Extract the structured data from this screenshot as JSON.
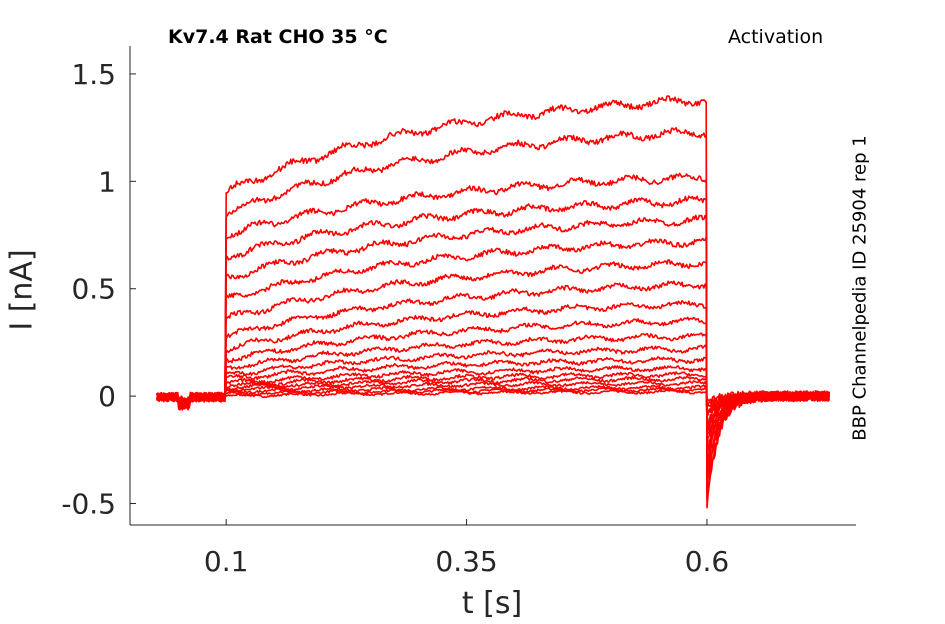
{
  "chart_data": {
    "type": "line",
    "title": "Kv7.4  Rat  CHO  35 °C",
    "protocol_label": "Activation",
    "side_label": "BBP Channelpedia ID 25904 rep 1",
    "xlabel": "t [s]",
    "ylabel": "I [nA]",
    "xlim": [
      0.0,
      0.755
    ],
    "ylim": [
      -0.6,
      1.63
    ],
    "xticks": [
      0.1,
      0.35,
      0.6
    ],
    "xtick_labels": [
      "0.1",
      "0.35",
      "0.6"
    ],
    "yticks": [
      -0.5,
      0,
      0.5,
      1,
      1.5
    ],
    "ytick_labels": [
      "-0.5",
      "0",
      "0.5",
      "1",
      "1.5"
    ],
    "grid": false,
    "line_color": "#ff0000",
    "step_start": 0.1,
    "step_end": 0.6,
    "trace_start": 0.028,
    "trace_end": 0.728,
    "series": [
      {
        "onset": 0.0,
        "end": 0.02,
        "tail": -0.02
      },
      {
        "onset": 0.01,
        "end": 0.03,
        "tail": -0.04
      },
      {
        "onset": 0.02,
        "end": 0.04,
        "tail": -0.06
      },
      {
        "onset": 0.03,
        "end": 0.06,
        "tail": -0.08
      },
      {
        "onset": 0.04,
        "end": 0.08,
        "tail": -0.1
      },
      {
        "onset": 0.05,
        "end": 0.1,
        "tail": -0.12
      },
      {
        "onset": 0.06,
        "end": 0.13,
        "tail": -0.14
      },
      {
        "onset": 0.08,
        "end": 0.17,
        "tail": -0.16
      },
      {
        "onset": 0.1,
        "end": 0.22,
        "tail": -0.18
      },
      {
        "onset": 0.13,
        "end": 0.28,
        "tail": -0.2
      },
      {
        "onset": 0.17,
        "end": 0.35,
        "tail": -0.22
      },
      {
        "onset": 0.22,
        "end": 0.43,
        "tail": -0.25
      },
      {
        "onset": 0.28,
        "end": 0.52,
        "tail": -0.28
      },
      {
        "onset": 0.36,
        "end": 0.62,
        "tail": -0.31
      },
      {
        "onset": 0.45,
        "end": 0.72,
        "tail": -0.34
      },
      {
        "onset": 0.55,
        "end": 0.82,
        "tail": -0.37
      },
      {
        "onset": 0.65,
        "end": 0.91,
        "tail": -0.4
      },
      {
        "onset": 0.75,
        "end": 1.02,
        "tail": -0.43
      },
      {
        "onset": 0.85,
        "end": 1.23,
        "tail": -0.47
      },
      {
        "onset": 0.95,
        "end": 1.38,
        "tail": -0.52
      }
    ]
  }
}
